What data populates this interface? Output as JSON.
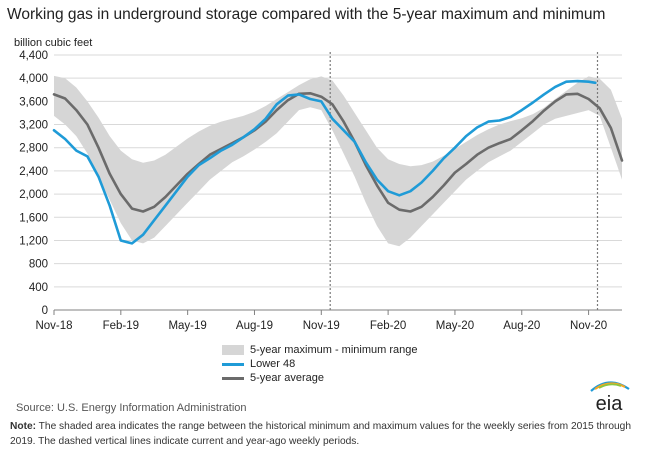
{
  "title": "Working gas in underground  storage compared with the 5-year maximum and minimum",
  "unit_label": "billion cubic feet",
  "legend": {
    "range": "5-year maximum - minimum range",
    "lower48": "Lower 48",
    "avg": "5-year average"
  },
  "source": "Source:  U.S. Energy Information Administration",
  "note_label": "Note:",
  "note_text": " The shaded area indicates the range between the historical minimum and maximum values for the weekly series from 2015 through 2019. The dashed vertical lines indicate current and year-ago weekly periods.",
  "logo_text": "eia",
  "colors": {
    "lower48": "#1f9bd7",
    "avg": "#6b6b6b",
    "range": "#d6d6d6",
    "grid": "#d9d9d9"
  },
  "chart_data": {
    "type": "area",
    "ylabel": "billion cubic feet",
    "ylim": [
      0,
      4400
    ],
    "yticks": [
      0,
      400,
      800,
      1200,
      1600,
      2000,
      2400,
      2800,
      3200,
      3600,
      4000,
      4400
    ],
    "x_unit": "months since Nov-18",
    "xlim": [
      0,
      25.5
    ],
    "xticks": [
      {
        "x": 0,
        "label": "Nov-18"
      },
      {
        "x": 3,
        "label": "Feb-19"
      },
      {
        "x": 6,
        "label": "May-19"
      },
      {
        "x": 9,
        "label": "Aug-19"
      },
      {
        "x": 12,
        "label": "Nov-19"
      },
      {
        "x": 15,
        "label": "Feb-20"
      },
      {
        "x": 18,
        "label": "May-20"
      },
      {
        "x": 21,
        "label": "Aug-20"
      },
      {
        "x": 24,
        "label": "Nov-20"
      }
    ],
    "grid": true,
    "vlines": [
      12.4,
      24.4
    ],
    "series": [
      {
        "name": "5-year maximum - minimum range",
        "type": "band",
        "x": [
          0,
          0.5,
          1,
          1.5,
          2,
          2.5,
          3,
          3.5,
          4,
          4.5,
          5,
          5.5,
          6,
          6.5,
          7,
          7.5,
          8,
          8.5,
          9,
          9.5,
          10,
          10.5,
          11,
          11.5,
          12,
          12.5,
          13,
          13.5,
          14,
          14.5,
          15,
          15.5,
          16,
          16.5,
          17,
          17.5,
          18,
          18.5,
          19,
          19.5,
          20,
          20.5,
          21,
          21.5,
          22,
          22.5,
          23,
          23.5,
          24,
          24.5,
          25,
          25.5
        ],
        "max": [
          4040,
          4000,
          3840,
          3600,
          3320,
          3000,
          2750,
          2600,
          2540,
          2580,
          2680,
          2820,
          2960,
          3080,
          3180,
          3250,
          3300,
          3350,
          3420,
          3520,
          3640,
          3760,
          3880,
          3980,
          4030,
          3960,
          3700,
          3400,
          3100,
          2800,
          2600,
          2520,
          2480,
          2500,
          2560,
          2660,
          2780,
          2900,
          3020,
          3120,
          3200,
          3260,
          3310,
          3380,
          3490,
          3640,
          3780,
          3920,
          4030,
          3990,
          3800,
          3300
        ],
        "min": [
          3350,
          3200,
          3000,
          2700,
          2300,
          1900,
          1500,
          1200,
          1150,
          1250,
          1450,
          1650,
          1850,
          2050,
          2250,
          2400,
          2550,
          2650,
          2770,
          2900,
          3050,
          3250,
          3450,
          3500,
          3450,
          3100,
          2700,
          2300,
          1850,
          1450,
          1150,
          1100,
          1250,
          1450,
          1650,
          1850,
          2050,
          2250,
          2400,
          2550,
          2650,
          2750,
          2900,
          3050,
          3200,
          3300,
          3350,
          3400,
          3450,
          3350,
          2800,
          2250
        ]
      },
      {
        "name": "Lower 48",
        "x": [
          0,
          0.5,
          1,
          1.5,
          2,
          2.5,
          3,
          3.5,
          4,
          4.5,
          5,
          5.5,
          6,
          6.5,
          7,
          7.5,
          8,
          8.5,
          9,
          9.5,
          10,
          10.5,
          11,
          11.5,
          12,
          12.5,
          13,
          13.5,
          14,
          14.5,
          15,
          15.5,
          16,
          16.5,
          17,
          17.5,
          18,
          18.5,
          19,
          19.5,
          20,
          20.5,
          21,
          21.5,
          22,
          22.5,
          23,
          23.5,
          24,
          24.3
        ],
        "values": [
          3100,
          2950,
          2750,
          2650,
          2300,
          1800,
          1200,
          1150,
          1300,
          1550,
          1800,
          2050,
          2300,
          2500,
          2620,
          2750,
          2850,
          2980,
          3120,
          3300,
          3550,
          3700,
          3720,
          3640,
          3600,
          3300,
          3100,
          2900,
          2550,
          2250,
          2050,
          1980,
          2050,
          2200,
          2400,
          2620,
          2800,
          3000,
          3150,
          3250,
          3270,
          3330,
          3450,
          3580,
          3720,
          3850,
          3940,
          3950,
          3940,
          3920
        ]
      },
      {
        "name": "5-year average",
        "x": [
          0,
          0.5,
          1,
          1.5,
          2,
          2.5,
          3,
          3.5,
          4,
          4.5,
          5,
          5.5,
          6,
          6.5,
          7,
          7.5,
          8,
          8.5,
          9,
          9.5,
          10,
          10.5,
          11,
          11.5,
          12,
          12.5,
          13,
          13.5,
          14,
          14.5,
          15,
          15.5,
          16,
          16.5,
          17,
          17.5,
          18,
          18.5,
          19,
          19.5,
          20,
          20.5,
          21,
          21.5,
          22,
          22.5,
          23,
          23.5,
          24,
          24.5,
          25,
          25.5
        ],
        "values": [
          3720,
          3650,
          3450,
          3200,
          2800,
          2350,
          2000,
          1750,
          1700,
          1780,
          1950,
          2150,
          2350,
          2520,
          2680,
          2780,
          2880,
          2980,
          3100,
          3250,
          3450,
          3620,
          3730,
          3740,
          3680,
          3550,
          3250,
          2900,
          2500,
          2150,
          1850,
          1730,
          1700,
          1780,
          1950,
          2150,
          2370,
          2520,
          2680,
          2800,
          2880,
          2950,
          3100,
          3260,
          3440,
          3600,
          3720,
          3730,
          3640,
          3480,
          3140,
          2580
        ]
      }
    ]
  }
}
